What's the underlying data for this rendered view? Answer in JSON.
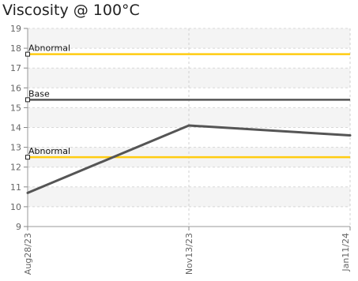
{
  "chart_data": {
    "type": "line",
    "title": "Viscosity @ 100°C",
    "ylabel": "",
    "xlabel": "",
    "ylim": [
      9,
      19
    ],
    "yticks": [
      9,
      10,
      11,
      12,
      13,
      14,
      15,
      16,
      17,
      18,
      19
    ],
    "categories": [
      "Aug28/23",
      "Nov13/23",
      "Jan11/24"
    ],
    "series": [
      {
        "values": [
          10.7,
          14.1,
          13.6
        ],
        "color": "#555555"
      }
    ],
    "reference_lines": [
      {
        "label": "Abnormal",
        "value": 17.7,
        "color": "#ffcc11",
        "style": "solid"
      },
      {
        "label": "Base",
        "value": 15.4,
        "color": "#555555",
        "style": "solid"
      },
      {
        "label": "Abnormal",
        "value": 12.5,
        "color": "#ffcc11",
        "style": "solid"
      }
    ],
    "grid": true,
    "band_colors": [
      "#f4f4f4",
      "#ffffff"
    ]
  }
}
